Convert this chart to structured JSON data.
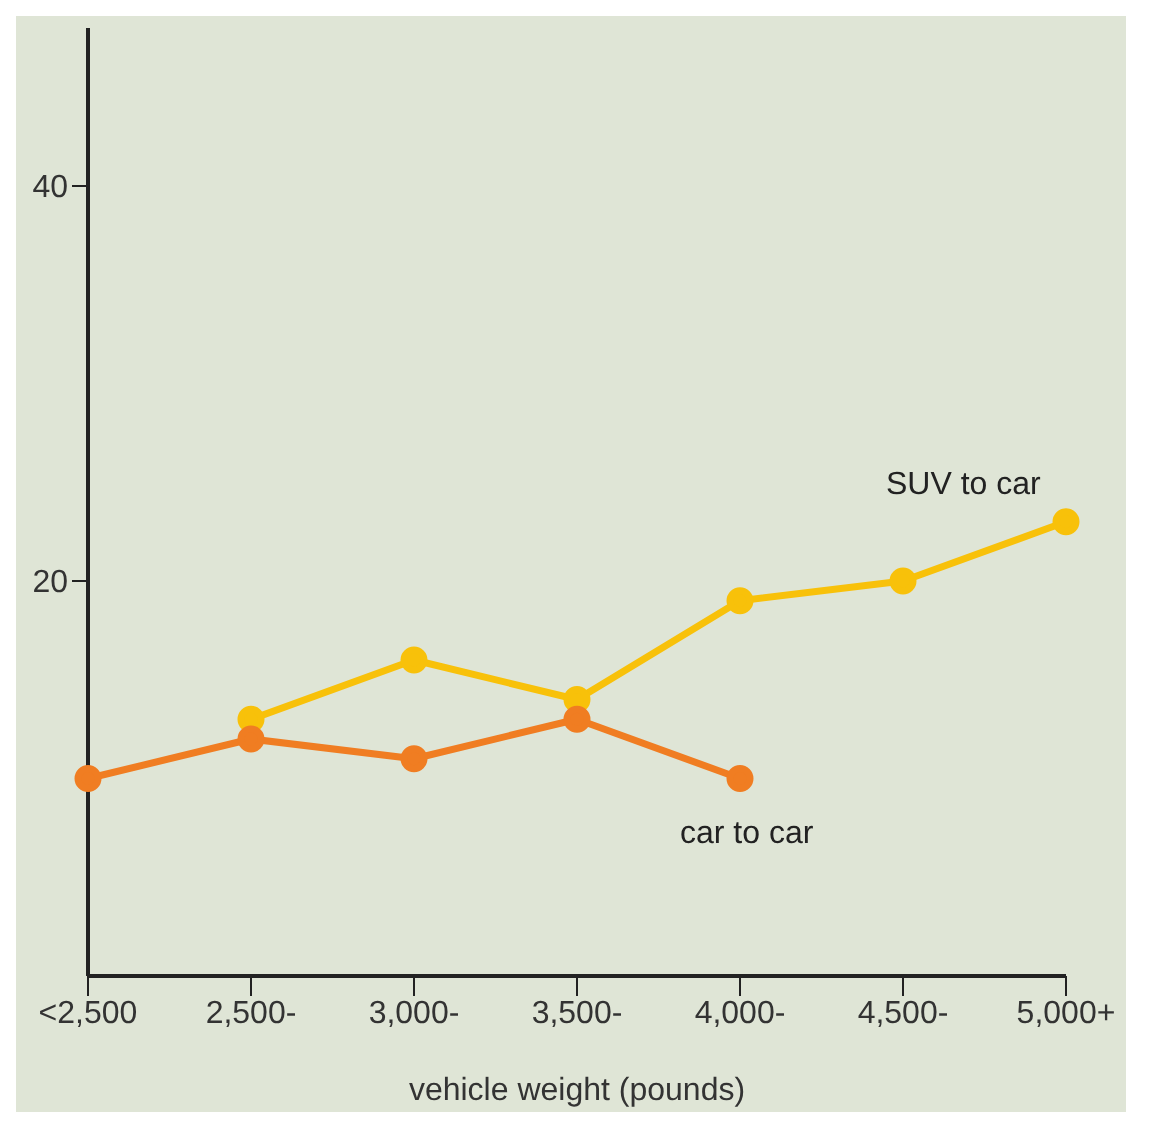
{
  "chart_data": {
    "type": "line",
    "xlabel": "vehicle weight (pounds)",
    "categories": [
      "<2,500",
      "2,500-",
      "3,000-",
      "3,500-",
      "4,000-",
      "4,500-",
      "5,000+"
    ],
    "series": [
      {
        "name": "SUV to car",
        "color": "#f8c10a",
        "values": [
          null,
          13,
          16,
          14,
          19,
          20,
          23
        ]
      },
      {
        "name": "car to car",
        "color": "#f07d22",
        "values": [
          10,
          12,
          11,
          13,
          10,
          null,
          null
        ]
      }
    ],
    "ylim": [
      0,
      48
    ],
    "yticks": [
      20,
      40
    ],
    "grid": false,
    "legend": false,
    "marker": "circle",
    "line_style": "solid"
  }
}
